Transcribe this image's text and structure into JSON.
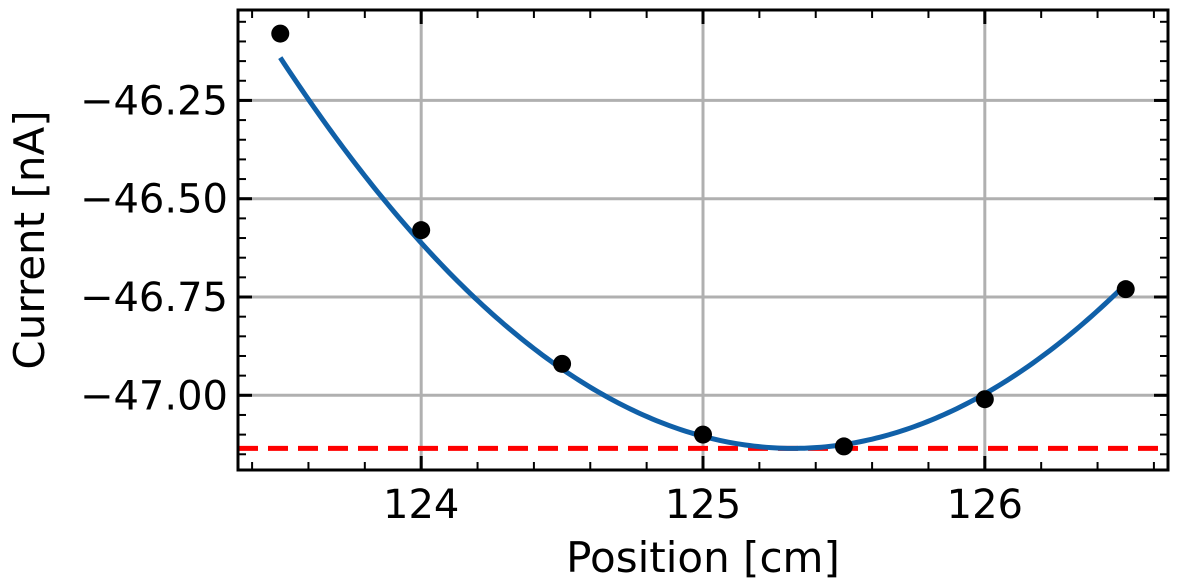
{
  "chart_data": {
    "type": "scatter",
    "title": "",
    "xlabel": "Position [cm]",
    "ylabel": "Current [nA]",
    "xlim": [
      123.35,
      126.65
    ],
    "ylim": [
      -47.19,
      -46.02
    ],
    "x_ticks": [
      124,
      125,
      126
    ],
    "x_tick_labels": [
      "124",
      "125",
      "126"
    ],
    "y_ticks": [
      -46.25,
      -46.5,
      -46.75,
      -47.0
    ],
    "y_tick_labels": [
      "−46.25",
      "−46.50",
      "−46.75",
      "−47.00"
    ],
    "grid": true,
    "series": [
      {
        "kind": "points",
        "color": "#000000",
        "x": [
          123.5,
          124.0,
          124.5,
          125.0,
          125.5,
          126.0,
          126.5
        ],
        "y": [
          -46.08,
          -46.58,
          -46.92,
          -47.1,
          -47.13,
          -47.01,
          -46.73
        ]
      },
      {
        "kind": "fit-curve",
        "color": "#1060a8",
        "model": "quadratic",
        "vertex_x": 125.32,
        "vertex_y": -47.135,
        "curvature": 0.3
      },
      {
        "kind": "hline",
        "color": "#ff0000",
        "style": "dashed",
        "y": -47.135
      }
    ]
  }
}
